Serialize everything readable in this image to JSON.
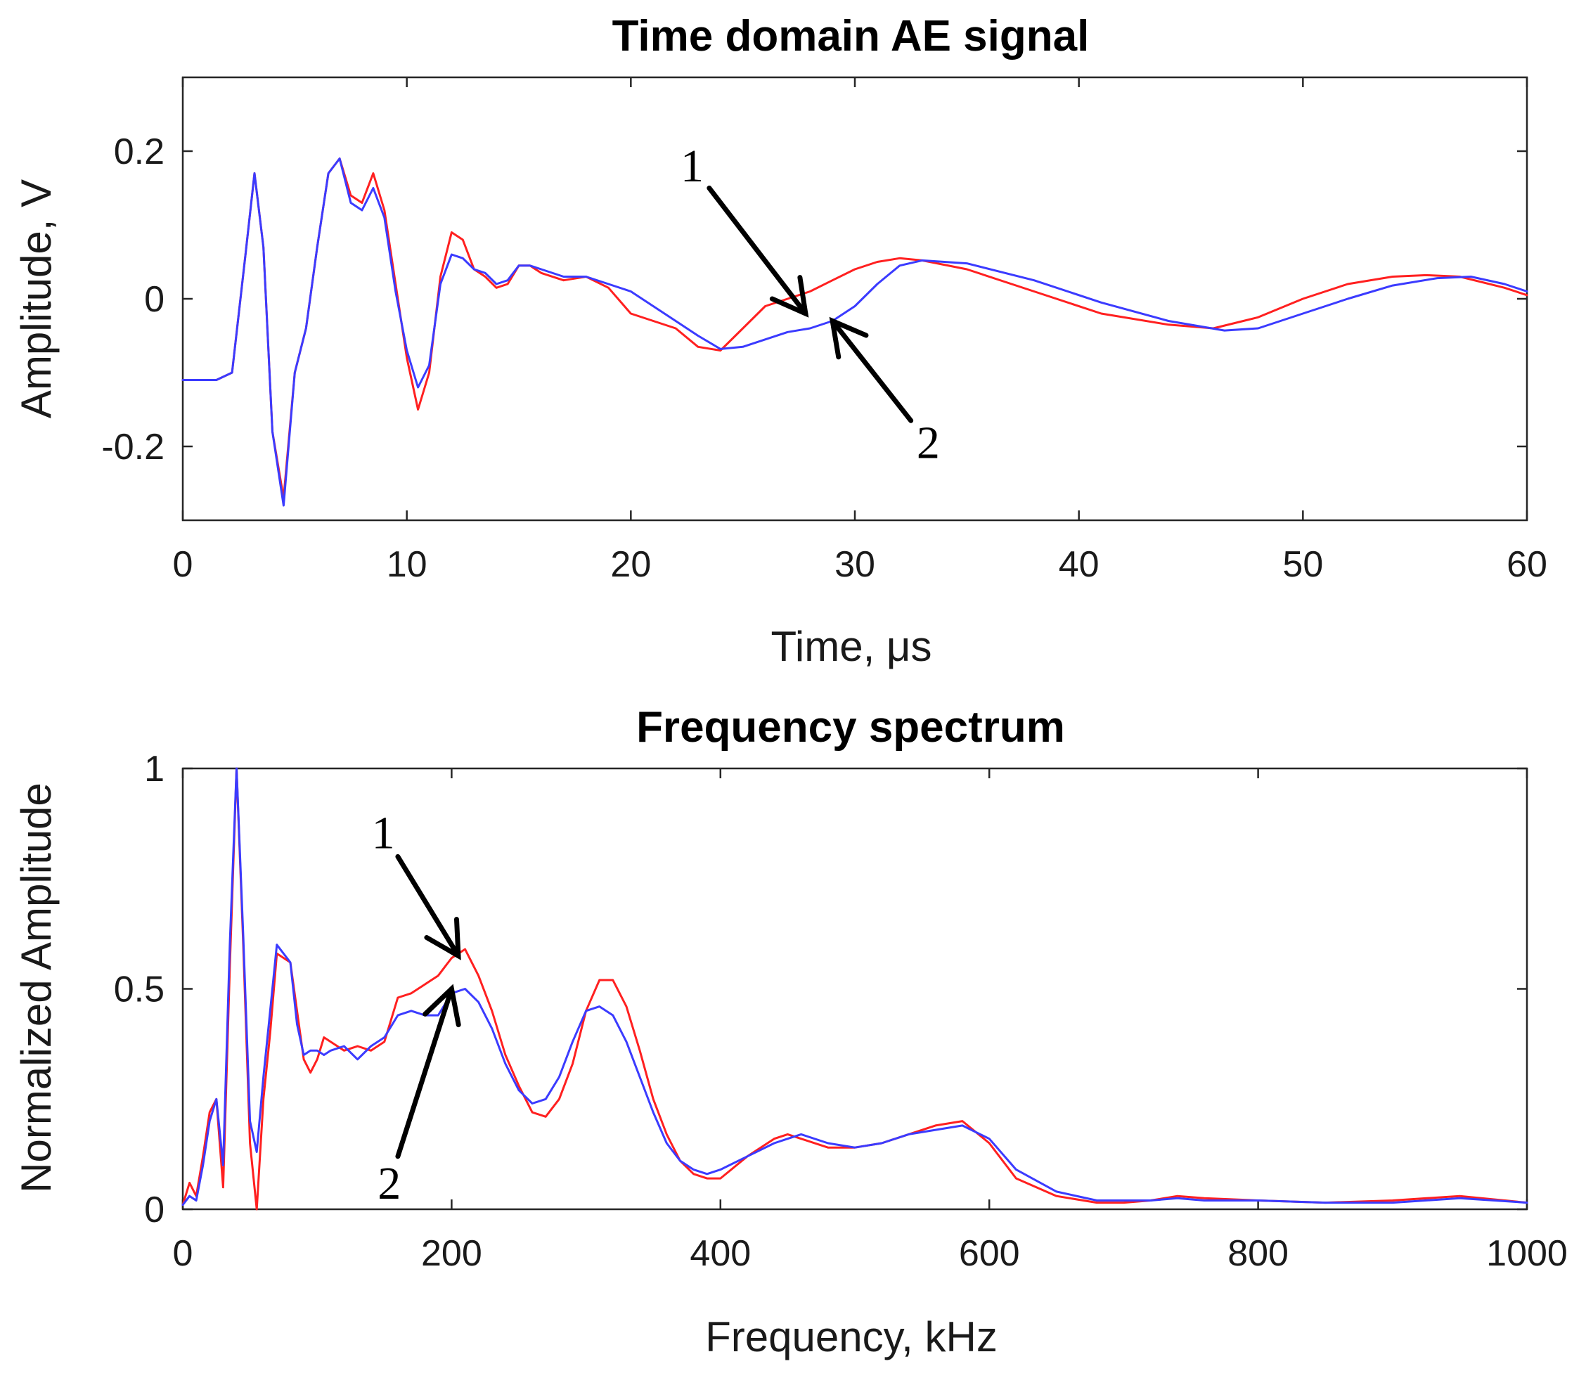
{
  "chart_data": [
    {
      "type": "line",
      "title": "Time domain AE signal",
      "xlabel": "Time, μs",
      "ylabel": "Amplitude, V",
      "xlim": [
        0,
        60
      ],
      "ylim": [
        -0.3,
        0.3
      ],
      "xticks": [
        0,
        10,
        20,
        30,
        40,
        50,
        60
      ],
      "xtick_labels": [
        "0",
        "10",
        "20",
        "30",
        "40",
        "50",
        "60"
      ],
      "yticks": [
        -0.2,
        0,
        0.2
      ],
      "ytick_labels": [
        "-0.2",
        "0",
        "0.2"
      ],
      "grid": false,
      "series": [
        {
          "name": "1",
          "color": "#ff2020",
          "x": [
            0,
            1.5,
            2.2,
            2.8,
            3.2,
            3.6,
            4.0,
            4.5,
            5.0,
            5.5,
            6.0,
            6.5,
            7.0,
            7.5,
            8.0,
            8.5,
            9.0,
            9.5,
            10.0,
            10.5,
            11.0,
            11.5,
            12.0,
            12.5,
            13.0,
            13.5,
            14.0,
            14.5,
            15.0,
            15.5,
            16.0,
            17.0,
            18.0,
            19.0,
            20.0,
            21.0,
            22.0,
            23.0,
            24.0,
            25.0,
            26.0,
            27.0,
            28.0,
            29.0,
            30.0,
            31.0,
            32.0,
            33.0,
            35.0,
            38.0,
            41.0,
            44.0,
            46.0,
            48.0,
            50.0,
            52.0,
            54.0,
            55.5,
            57.0,
            59.0,
            60.0
          ],
          "y": [
            -0.11,
            -0.11,
            -0.1,
            0.06,
            0.17,
            0.07,
            -0.18,
            -0.27,
            -0.1,
            -0.04,
            0.07,
            0.17,
            0.19,
            0.14,
            0.13,
            0.17,
            0.12,
            0.02,
            -0.08,
            -0.15,
            -0.1,
            0.03,
            0.09,
            0.08,
            0.04,
            0.03,
            0.015,
            0.02,
            0.045,
            0.045,
            0.035,
            0.025,
            0.03,
            0.015,
            -0.02,
            -0.03,
            -0.04,
            -0.065,
            -0.07,
            -0.04,
            -0.01,
            0.0,
            0.01,
            0.025,
            0.04,
            0.05,
            0.055,
            0.052,
            0.04,
            0.01,
            -0.02,
            -0.035,
            -0.04,
            -0.025,
            0.0,
            0.02,
            0.03,
            0.032,
            0.03,
            0.015,
            0.005
          ]
        },
        {
          "name": "2",
          "color": "#3b3bff",
          "x": [
            0,
            1.5,
            2.2,
            2.8,
            3.2,
            3.6,
            4.0,
            4.5,
            5.0,
            5.5,
            6.0,
            6.5,
            7.0,
            7.5,
            8.0,
            8.5,
            9.0,
            9.5,
            10.0,
            10.5,
            11.0,
            11.5,
            12.0,
            12.5,
            13.0,
            13.5,
            14.0,
            14.5,
            15.0,
            15.5,
            16.0,
            17.0,
            18.0,
            19.0,
            20.0,
            21.0,
            22.0,
            23.0,
            24.0,
            25.0,
            26.0,
            27.0,
            28.0,
            29.0,
            30.0,
            31.0,
            32.0,
            33.0,
            35.0,
            38.0,
            41.0,
            44.0,
            46.5,
            48.0,
            50.0,
            52.0,
            54.0,
            56.0,
            57.5,
            59.0,
            60.0
          ],
          "y": [
            -0.11,
            -0.11,
            -0.1,
            0.06,
            0.17,
            0.07,
            -0.18,
            -0.28,
            -0.1,
            -0.04,
            0.07,
            0.17,
            0.19,
            0.13,
            0.12,
            0.15,
            0.11,
            0.01,
            -0.07,
            -0.12,
            -0.09,
            0.02,
            0.06,
            0.055,
            0.04,
            0.035,
            0.02,
            0.025,
            0.045,
            0.045,
            0.04,
            0.03,
            0.03,
            0.02,
            0.01,
            -0.01,
            -0.03,
            -0.05,
            -0.068,
            -0.065,
            -0.055,
            -0.045,
            -0.04,
            -0.03,
            -0.01,
            0.02,
            0.045,
            0.052,
            0.048,
            0.025,
            -0.005,
            -0.03,
            -0.043,
            -0.04,
            -0.02,
            0.0,
            0.018,
            0.028,
            0.03,
            0.02,
            0.01
          ]
        }
      ],
      "annotations": [
        {
          "text": "1",
          "arrow_from": [
            23.5,
            0.15
          ],
          "arrow_to": [
            27.8,
            -0.02
          ]
        },
        {
          "text": "2",
          "arrow_from": [
            32.5,
            -0.165
          ],
          "arrow_to": [
            29.0,
            -0.03
          ]
        }
      ]
    },
    {
      "type": "line",
      "title": "Frequency spectrum",
      "xlabel": "Frequency, kHz",
      "ylabel": "Normalized Amplitude",
      "xlim": [
        0,
        1000
      ],
      "ylim": [
        0,
        1
      ],
      "xticks": [
        0,
        200,
        400,
        600,
        800,
        1000
      ],
      "xtick_labels": [
        "0",
        "200",
        "400",
        "600",
        "800",
        "1000"
      ],
      "yticks": [
        0,
        0.5,
        1
      ],
      "ytick_labels": [
        "0",
        "0.5",
        "1"
      ],
      "grid": false,
      "series": [
        {
          "name": "1",
          "color": "#ff2020",
          "x": [
            0,
            5,
            10,
            15,
            20,
            25,
            30,
            35,
            40,
            45,
            50,
            55,
            60,
            65,
            70,
            80,
            85,
            90,
            95,
            100,
            105,
            110,
            120,
            130,
            140,
            150,
            160,
            170,
            180,
            190,
            200,
            210,
            220,
            230,
            240,
            250,
            260,
            270,
            280,
            290,
            300,
            310,
            320,
            330,
            340,
            350,
            360,
            370,
            380,
            390,
            400,
            420,
            440,
            450,
            460,
            480,
            500,
            520,
            540,
            560,
            580,
            600,
            620,
            650,
            680,
            700,
            720,
            740,
            760,
            800,
            850,
            900,
            950,
            1000
          ],
          "y": [
            0.01,
            0.06,
            0.03,
            0.12,
            0.22,
            0.25,
            0.05,
            0.55,
            1.0,
            0.6,
            0.15,
            0.0,
            0.25,
            0.4,
            0.58,
            0.56,
            0.45,
            0.34,
            0.31,
            0.34,
            0.39,
            0.38,
            0.36,
            0.37,
            0.36,
            0.38,
            0.48,
            0.49,
            0.51,
            0.53,
            0.57,
            0.59,
            0.53,
            0.45,
            0.35,
            0.28,
            0.22,
            0.21,
            0.25,
            0.33,
            0.45,
            0.52,
            0.52,
            0.46,
            0.36,
            0.25,
            0.17,
            0.11,
            0.08,
            0.07,
            0.07,
            0.12,
            0.16,
            0.17,
            0.16,
            0.14,
            0.14,
            0.15,
            0.17,
            0.19,
            0.2,
            0.15,
            0.07,
            0.03,
            0.015,
            0.015,
            0.02,
            0.03,
            0.025,
            0.02,
            0.015,
            0.02,
            0.03,
            0.015
          ]
        },
        {
          "name": "2",
          "color": "#3b3bff",
          "x": [
            0,
            5,
            10,
            15,
            20,
            25,
            30,
            35,
            40,
            45,
            50,
            55,
            60,
            65,
            70,
            80,
            85,
            90,
            95,
            100,
            105,
            110,
            120,
            130,
            140,
            150,
            160,
            170,
            180,
            190,
            200,
            210,
            220,
            230,
            240,
            250,
            260,
            270,
            280,
            290,
            300,
            310,
            320,
            330,
            340,
            350,
            360,
            370,
            380,
            390,
            400,
            420,
            440,
            450,
            460,
            480,
            500,
            520,
            540,
            560,
            580,
            600,
            620,
            650,
            680,
            700,
            720,
            740,
            760,
            800,
            850,
            900,
            950,
            1000
          ],
          "y": [
            0.01,
            0.03,
            0.02,
            0.1,
            0.2,
            0.25,
            0.1,
            0.6,
            1.0,
            0.62,
            0.2,
            0.13,
            0.3,
            0.45,
            0.6,
            0.56,
            0.42,
            0.35,
            0.36,
            0.36,
            0.35,
            0.36,
            0.37,
            0.34,
            0.37,
            0.39,
            0.44,
            0.45,
            0.44,
            0.44,
            0.49,
            0.5,
            0.47,
            0.41,
            0.33,
            0.27,
            0.24,
            0.25,
            0.3,
            0.38,
            0.45,
            0.46,
            0.44,
            0.38,
            0.3,
            0.22,
            0.15,
            0.11,
            0.09,
            0.08,
            0.09,
            0.12,
            0.15,
            0.16,
            0.17,
            0.15,
            0.14,
            0.15,
            0.17,
            0.18,
            0.19,
            0.16,
            0.09,
            0.04,
            0.02,
            0.02,
            0.02,
            0.025,
            0.02,
            0.02,
            0.015,
            0.015,
            0.025,
            0.015
          ]
        }
      ],
      "annotations": [
        {
          "text": "1",
          "arrow_from": [
            160,
            0.8
          ],
          "arrow_to": [
            205,
            0.575
          ]
        },
        {
          "text": "2",
          "arrow_from": [
            160,
            0.12
          ],
          "arrow_to": [
            200,
            0.5
          ]
        }
      ]
    }
  ]
}
